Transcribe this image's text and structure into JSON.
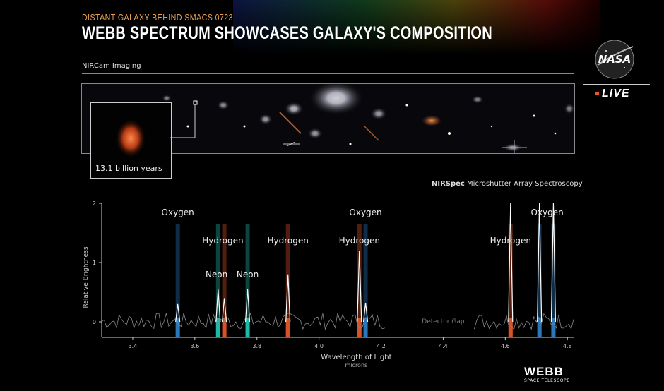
{
  "header": {
    "subtitle": "DISTANT GALAXY BEHIND SMACS 0723",
    "title": "WEBB SPECTRUM SHOWCASES GALAXY'S COMPOSITION"
  },
  "imaging": {
    "section_label": "NIRCam Imaging",
    "inset_label": "13.1 billion years"
  },
  "spectroscopy": {
    "label_bold": "NIRSpec",
    "label_rest": " Microshutter Array Spectroscopy"
  },
  "branding": {
    "nasa": "NASA",
    "live": "LIVE",
    "webb": "WEBB",
    "webb_sub": "SPACE TELESCOPE"
  },
  "colors": {
    "oxygen": "#2f7fc9",
    "hydrogen": "#e8572a",
    "neon": "#1fc7b0",
    "accent": "#e8a055"
  },
  "chart_data": {
    "type": "line",
    "title": "",
    "xlabel": "Wavelength of Light",
    "xlabel_units": "microns",
    "ylabel": "Relative Brightness",
    "xlim": [
      3.3,
      4.82
    ],
    "ylim": [
      -0.2,
      2
    ],
    "xticks": [
      3.4,
      3.6,
      3.8,
      4.0,
      4.2,
      4.4,
      4.6,
      4.8
    ],
    "xtick_labels": [
      "3.4",
      "3.6",
      "3.8",
      "4.0",
      "4.2",
      "4.4",
      "4.6",
      "4.8"
    ],
    "yticks": [
      0,
      1,
      2
    ],
    "ytick_labels": [
      "0",
      "1",
      "2"
    ],
    "detector_gap": {
      "start": 4.22,
      "end": 4.5,
      "label": "Detector Gap"
    },
    "emission_lines": [
      {
        "element": "Oxygen",
        "x": 3.545,
        "peak": 0.3,
        "color": "oxygen"
      },
      {
        "element": "Neon",
        "x": 3.675,
        "peak": 0.55,
        "color": "neon"
      },
      {
        "element": "Hydrogen",
        "x": 3.695,
        "peak": 0.4,
        "color": "hydrogen"
      },
      {
        "element": "Neon",
        "x": 3.77,
        "peak": 0.55,
        "color": "neon"
      },
      {
        "element": "Hydrogen",
        "x": 3.9,
        "peak": 0.8,
        "color": "hydrogen"
      },
      {
        "element": "Hydrogen",
        "x": 4.13,
        "peak": 1.2,
        "color": "hydrogen"
      },
      {
        "element": "Oxygen",
        "x": 4.15,
        "peak": 0.32,
        "color": "oxygen"
      },
      {
        "element": "Hydrogen",
        "x": 4.617,
        "peak": 2.0,
        "color": "hydrogen"
      },
      {
        "element": "Oxygen",
        "x": 4.71,
        "peak": 2.0,
        "color": "oxygen"
      },
      {
        "element": "Oxygen",
        "x": 4.755,
        "peak": 2.0,
        "color": "oxygen"
      }
    ],
    "element_labels": [
      {
        "text": "Oxygen",
        "x": 3.545,
        "y": 1.8
      },
      {
        "text": "Hydrogen",
        "x": 3.69,
        "y": 1.32
      },
      {
        "text": "Hydrogen",
        "x": 3.9,
        "y": 1.32
      },
      {
        "text": "Neon",
        "x": 3.67,
        "y": 0.75
      },
      {
        "text": "Neon",
        "x": 3.77,
        "y": 0.75
      },
      {
        "text": "Oxygen",
        "x": 4.15,
        "y": 1.8
      },
      {
        "text": "Hydrogen",
        "x": 4.13,
        "y": 1.32
      },
      {
        "text": "Hydrogen",
        "x": 4.617,
        "y": 1.32
      },
      {
        "text": "Oxygen",
        "x": 4.735,
        "y": 1.8
      }
    ]
  }
}
